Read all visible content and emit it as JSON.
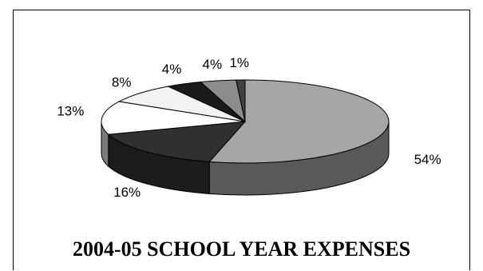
{
  "chart_data": {
    "type": "pie",
    "title": "2004-05 SCHOOL YEAR EXPENSES",
    "values": [
      54,
      16,
      13,
      8,
      4,
      4,
      1
    ],
    "labels": [
      "54%",
      "16%",
      "13%",
      "8%",
      "4%",
      "4%",
      "1%"
    ],
    "colors": [
      "#a6a6a6",
      "#303030",
      "#ffffff",
      "#f2f2f2",
      "#1a1a1a",
      "#8c8c8c",
      "#404040"
    ],
    "side_colors": [
      "#595959",
      "#1c1c1c",
      "#7a7a7a",
      "#b0b0b0",
      "#0d0d0d",
      "#4f4f4f",
      "#202020"
    ],
    "three_d": true,
    "legend": "none"
  }
}
